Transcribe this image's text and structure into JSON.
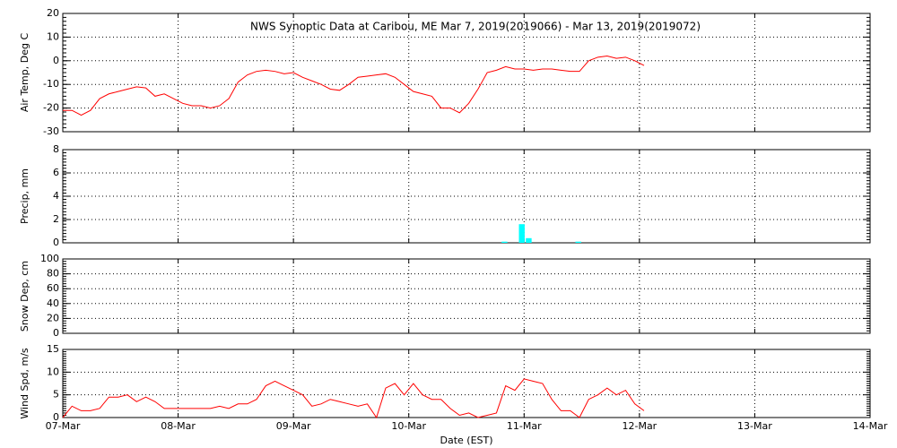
{
  "chart_data": [
    {
      "type": "line",
      "title": "NWS Synoptic Data at Caribou, ME   Mar  7, 2019(2019066) - Mar 13, 2019(2019072)",
      "ylabel": "Air Temp, Deg C",
      "ylim": [
        -30,
        20
      ],
      "yticks": [
        -30,
        -20,
        -10,
        0,
        10,
        20
      ],
      "grid": true,
      "x": [
        0,
        0.08,
        0.16,
        0.24,
        0.32,
        0.4,
        0.48,
        0.56,
        0.64,
        0.72,
        0.8,
        0.88,
        0.96,
        1.04,
        1.12,
        1.2,
        1.28,
        1.36,
        1.44,
        1.52,
        1.6,
        1.68,
        1.76,
        1.84,
        1.92,
        2,
        2.08,
        2.16,
        2.24,
        2.32,
        2.4,
        2.48,
        2.56,
        2.64,
        2.72,
        2.8,
        2.88,
        2.96,
        3.04,
        3.12,
        3.2,
        3.28,
        3.36,
        3.44,
        3.52,
        3.6,
        3.68,
        3.76,
        3.84,
        3.92,
        4,
        4.08,
        4.16,
        4.24,
        4.32,
        4.4,
        4.48,
        4.56,
        4.64,
        4.72,
        4.8,
        4.88,
        4.96,
        5.04
      ],
      "series": [
        {
          "name": "Air Temp",
          "color": "#ff0000",
          "values": [
            -21,
            -21,
            -23,
            -21,
            -16,
            -14,
            -13,
            -12,
            -11,
            -11.5,
            -15,
            -14,
            -16,
            -18,
            -19,
            -19,
            -20,
            -19,
            -16,
            -9,
            -6,
            -4.5,
            -4,
            -4.5,
            -5.5,
            -5,
            -7,
            -8.5,
            -10,
            -12,
            -12.5,
            -10,
            -7,
            -6.5,
            -6,
            -5.5,
            -7,
            -10,
            -13,
            -14,
            -15,
            -20,
            -20,
            -22,
            -18,
            -12,
            -5,
            -4,
            -2.5,
            -3.5,
            -3.5,
            -4,
            -3.5,
            -3.5,
            -4,
            -4.5,
            -4.5,
            0,
            1.5,
            2,
            1,
            1.5,
            0,
            -2
          ]
        }
      ]
    },
    {
      "type": "bar",
      "ylabel": "Precip, mm",
      "ylim": [
        0,
        8
      ],
      "yticks": [
        0,
        2,
        4,
        6,
        8
      ],
      "grid": true,
      "x": [
        3.83,
        3.98,
        4.04,
        4.47
      ],
      "bar_width": 0.05,
      "series": [
        {
          "name": "Precip",
          "color": "#00ffff",
          "values": [
            0.1,
            1.6,
            0.4,
            0.1
          ]
        }
      ]
    },
    {
      "type": "line",
      "ylabel": "Snow Dep, cm",
      "ylim": [
        0,
        100
      ],
      "yticks": [
        0,
        20,
        40,
        60,
        80,
        100
      ],
      "grid": true
    },
    {
      "type": "line",
      "ylabel": "Wind Spd, m/s",
      "ylim": [
        0,
        15
      ],
      "yticks": [
        0,
        5,
        10,
        15
      ],
      "grid": true,
      "xlabel": "Date (EST)",
      "xlim": [
        0,
        7
      ],
      "xticks": [
        {
          "value": 0,
          "label": "07-Mar"
        },
        {
          "value": 1,
          "label": "08-Mar"
        },
        {
          "value": 2,
          "label": "09-Mar"
        },
        {
          "value": 3,
          "label": "10-Mar"
        },
        {
          "value": 4,
          "label": "11-Mar"
        },
        {
          "value": 5,
          "label": "12-Mar"
        },
        {
          "value": 6,
          "label": "13-Mar"
        },
        {
          "value": 7,
          "label": "14-Mar"
        }
      ],
      "x": [
        0,
        0.08,
        0.16,
        0.24,
        0.32,
        0.4,
        0.48,
        0.56,
        0.64,
        0.72,
        0.8,
        0.88,
        0.96,
        1.04,
        1.12,
        1.2,
        1.28,
        1.36,
        1.44,
        1.52,
        1.6,
        1.68,
        1.76,
        1.84,
        1.92,
        2,
        2.08,
        2.16,
        2.24,
        2.32,
        2.4,
        2.48,
        2.56,
        2.64,
        2.72,
        2.8,
        2.88,
        2.96,
        3.04,
        3.12,
        3.2,
        3.28,
        3.36,
        3.44,
        3.52,
        3.6,
        3.68,
        3.76,
        3.84,
        3.92,
        4,
        4.08,
        4.16,
        4.24,
        4.32,
        4.4,
        4.48,
        4.56,
        4.64,
        4.72,
        4.8,
        4.88,
        4.96,
        5.04
      ],
      "series": [
        {
          "name": "Wind Spd",
          "color": "#ff0000",
          "values": [
            0,
            2.5,
            1.5,
            1.5,
            2,
            4.5,
            4.5,
            5,
            3.5,
            4.5,
            3.5,
            2,
            2,
            2,
            2,
            2,
            2,
            2.5,
            2,
            3,
            3,
            4,
            7,
            8,
            7,
            6,
            5,
            2.5,
            3,
            4,
            3.5,
            3,
            2.5,
            3,
            0,
            6.5,
            7.5,
            5,
            7.5,
            5,
            4,
            4,
            2,
            0.5,
            1,
            0,
            0.5,
            1,
            7,
            6,
            8.5,
            8,
            7.5,
            4,
            1.5,
            1.5,
            0,
            4,
            5,
            6.5,
            5,
            6,
            3,
            1.5
          ]
        }
      ]
    }
  ]
}
